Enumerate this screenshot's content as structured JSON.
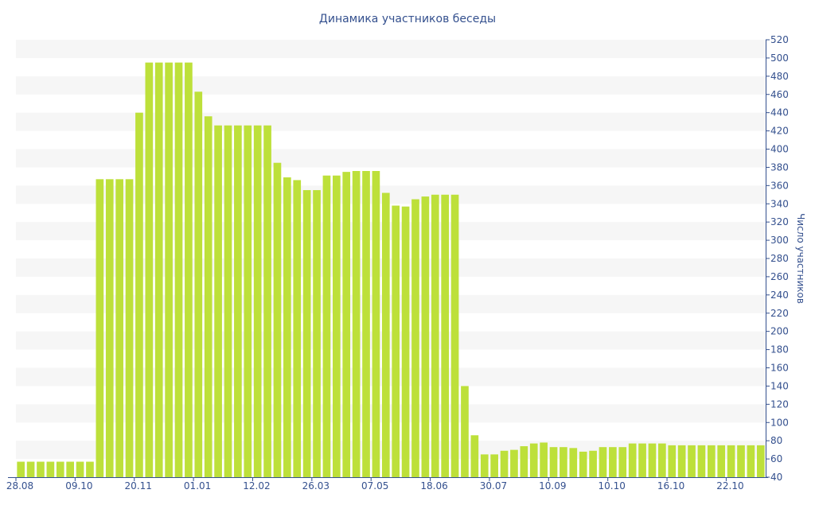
{
  "chart_data": {
    "type": "bar",
    "title": "Динамика участников беседы",
    "xlabel": "",
    "ylabel": "Число участников",
    "ylim": [
      40,
      520
    ],
    "yticks": [
      40,
      60,
      80,
      100,
      120,
      140,
      160,
      180,
      200,
      220,
      240,
      260,
      280,
      300,
      320,
      340,
      360,
      380,
      400,
      420,
      440,
      460,
      480,
      500,
      520
    ],
    "xtick_labels": [
      "28.08",
      "09.10",
      "20.11",
      "01.01",
      "12.02",
      "26.03",
      "07.05",
      "18.06",
      "30.07",
      "10.09",
      "10.10",
      "16.10",
      "22.10"
    ],
    "xtick_label_bar_index": [
      0,
      6,
      12,
      18,
      24,
      30,
      36,
      42,
      48,
      54,
      60,
      66,
      72
    ],
    "y_axis_position": "right",
    "grid": "horizontal bands",
    "bar_color": "#bde03a",
    "band_color": "#f6f6f6",
    "text_color": "#34508e",
    "values": [
      57,
      57,
      57,
      57,
      57,
      57,
      57,
      57,
      367,
      367,
      367,
      367,
      440,
      495,
      495,
      495,
      495,
      495,
      463,
      436,
      426,
      426,
      426,
      426,
      426,
      426,
      385,
      369,
      366,
      355,
      355,
      371,
      371,
      375,
      376,
      376,
      376,
      352,
      338,
      337,
      345,
      348,
      350,
      350,
      350,
      140,
      86,
      65,
      65,
      69,
      70,
      74,
      77,
      78,
      73,
      73,
      72,
      68,
      69,
      73,
      73,
      73,
      77,
      77,
      77,
      77,
      75,
      75,
      75,
      75,
      75,
      75,
      75,
      75,
      75,
      75
    ]
  }
}
